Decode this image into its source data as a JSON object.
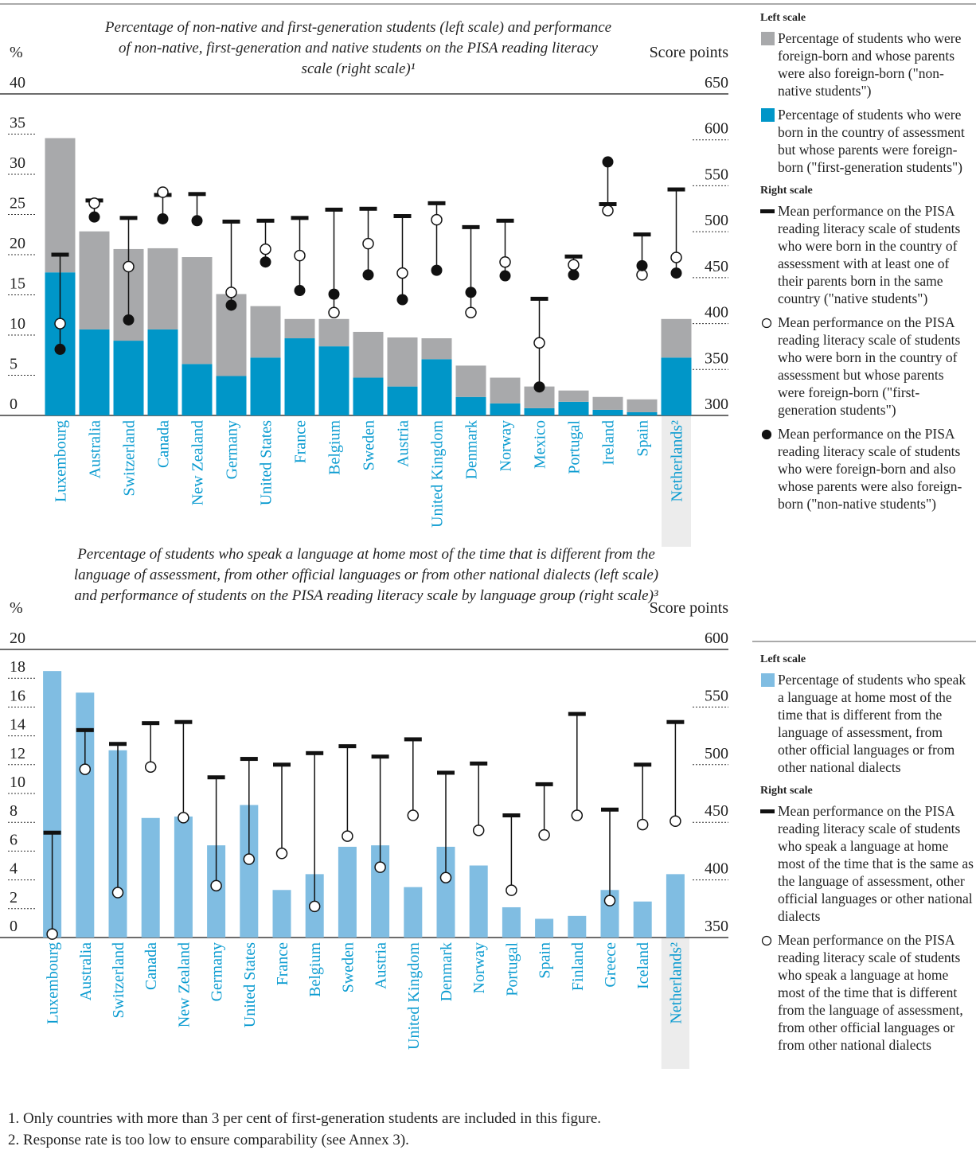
{
  "chart_data": [
    {
      "type": "bar",
      "title": "Percentage of non-native and first-generation students (left scale) and performance of non-native, first-generation and native students on the PISA reading literacy scale (right scale)¹",
      "ylabel": "%",
      "y2label": "Score points",
      "legend_headings": {
        "left": "Left scale",
        "right": "Right scale"
      },
      "categories": [
        "Luxembourg",
        "Australia",
        "Switzerland",
        "Canada",
        "New Zealand",
        "Germany",
        "United States",
        "France",
        "Belgium",
        "Sweden",
        "Austria",
        "United Kingdom",
        "Denmark",
        "Norway",
        "Mexico",
        "Portugal",
        "Ireland",
        "Spain",
        "Netherlands²"
      ],
      "ylim": [
        0,
        40
      ],
      "yticks": [
        0,
        5,
        10,
        15,
        20,
        25,
        30,
        35,
        40
      ],
      "y2lim": [
        300,
        650
      ],
      "y2ticks": [
        300,
        350,
        400,
        450,
        500,
        550,
        600,
        650
      ],
      "series": [
        {
          "name": "Percentage of students who were foreign-born and whose parents were also foreign-born (\"non-native students\")",
          "color": "#a8a9ab",
          "values": [
            16.7,
            12.2,
            11.4,
            10.1,
            13.3,
            10.2,
            6.4,
            2.4,
            3.4,
            5.7,
            6.1,
            2.6,
            3.9,
            3.2,
            2.7,
            1.4,
            1.6,
            1.6,
            4.8
          ]
        },
        {
          "name": "Percentage of students who were born in the country of assessment but whose parents were foreign-born (\"first-generation students\")",
          "color": "#0096c8",
          "values": [
            17.8,
            10.7,
            9.3,
            10.7,
            6.4,
            4.9,
            7.2,
            9.6,
            8.6,
            4.7,
            3.6,
            7.0,
            2.3,
            1.5,
            0.9,
            1.7,
            0.7,
            0.4,
            7.2
          ]
        },
        {
          "name": "Mean performance on the PISA reading literacy scale of students who were born in the country of assessment with at least one of their parents born in the same country (\"native students\")",
          "color": "#111111",
          "axis": "y2",
          "marker": "dash",
          "values": [
            475,
            534,
            515,
            540,
            541,
            511,
            512,
            515,
            524,
            525,
            517,
            531,
            505,
            512,
            427,
            473,
            530,
            497,
            546
          ]
        },
        {
          "name": "Mean performance on the PISA reading literacy scale of students who were born in the country of assessment but whose parents were foreign-born (\"first-generation students\")",
          "color": "#111111",
          "axis": "y2",
          "marker": "open-circle",
          "values": [
            400,
            531,
            462,
            543,
            null,
            434,
            481,
            474,
            412,
            487,
            455,
            513,
            412,
            467,
            379,
            464,
            523,
            453,
            472
          ]
        },
        {
          "name": "Mean performance on the PISA reading literacy scale of students who were foreign-born and also whose parents were also foreign-born (\"non-native students\")",
          "color": "#111111",
          "axis": "y2",
          "marker": "filled-circle",
          "values": [
            372,
            516,
            404,
            514,
            512,
            420,
            467,
            436,
            432,
            453,
            426,
            458,
            434,
            452,
            331,
            453,
            576,
            463,
            455
          ]
        }
      ]
    },
    {
      "type": "bar",
      "title": "Percentage of students who speak a language at home most of the time that is different from the language of assessment, from other official languages or from other national dialects (left scale) and performance of students on the PISA reading literacy scale by language group (right scale)³",
      "ylabel": "%",
      "y2label": "Score points",
      "legend_headings": {
        "left": "Left scale",
        "right": "Right scale"
      },
      "categories": [
        "Luxembourg",
        "Australia",
        "Switzerland",
        "Canada",
        "New Zealand",
        "Germany",
        "United States",
        "France",
        "Belgium",
        "Sweden",
        "Austria",
        "United Kingdom",
        "Denmark",
        "Norway",
        "Portugal",
        "Spain",
        "Finland",
        "Greece",
        "Iceland",
        "Netherlands²"
      ],
      "ylim": [
        0,
        20
      ],
      "yticks": [
        0,
        2,
        4,
        6,
        8,
        10,
        12,
        14,
        16,
        18,
        20
      ],
      "y2lim": [
        350,
        600
      ],
      "y2ticks": [
        350,
        400,
        450,
        500,
        550,
        600
      ],
      "series": [
        {
          "name": "Percentage of students who speak a language at home most of the time that is different from the language of assessment, from other official languages or from other national dialects",
          "color": "#80bde2",
          "values": [
            18.5,
            17.0,
            13.0,
            8.3,
            8.4,
            6.4,
            9.2,
            3.3,
            4.4,
            6.3,
            6.4,
            3.5,
            6.3,
            5.0,
            2.1,
            1.3,
            1.5,
            3.3,
            2.5,
            4.4
          ]
        },
        {
          "name": "Mean performance on the PISA reading literacy scale of students who speak a language at home most of the time that is the same as the language of assessment, other official languages or other national dialects",
          "color": "#111111",
          "axis": "y2",
          "marker": "dash",
          "values": [
            441,
            530,
            518,
            536,
            537,
            489,
            505,
            500,
            510,
            516,
            507,
            522,
            493,
            501,
            456,
            483,
            544,
            461,
            500,
            537
          ]
        },
        {
          "name": "Mean performance on the PISA reading literacy scale of students who speak a language at home most of the time that is different from the language of assessment, from other official languages or from other national dialects",
          "color": "#111111",
          "axis": "y2",
          "marker": "open-circle",
          "values": [
            353,
            496,
            389,
            498,
            454,
            395,
            418,
            423,
            377,
            438,
            411,
            456,
            402,
            443,
            391,
            439,
            456,
            382,
            448,
            451
          ]
        }
      ]
    }
  ],
  "footnotes": [
    "1. Only countries with more than 3 per cent of first-generation students are included in this figure.",
    "2. Response rate is too low to ensure comparability (see Annex 3)."
  ]
}
